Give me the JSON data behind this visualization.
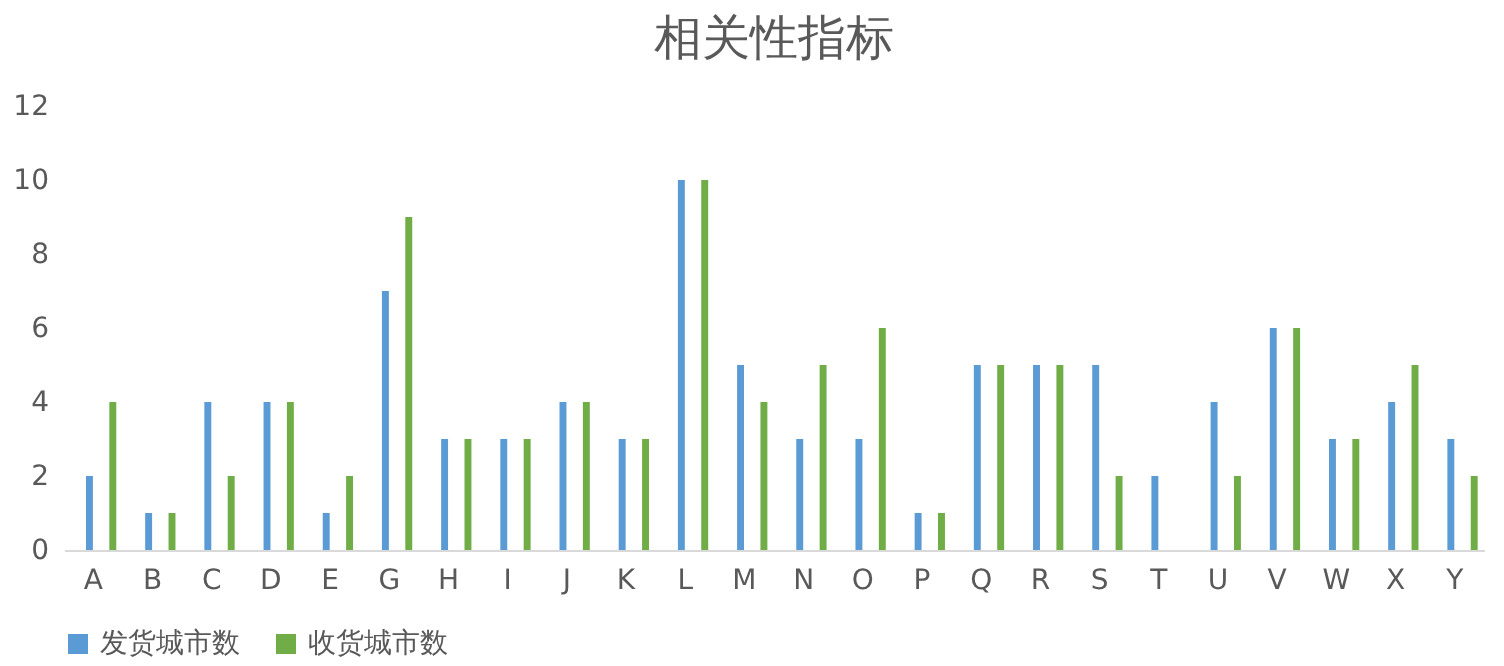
{
  "chart_data": {
    "type": "bar",
    "title": "相关性指标",
    "categories": [
      "A",
      "B",
      "C",
      "D",
      "E",
      "G",
      "H",
      "I",
      "J",
      "K",
      "L",
      "M",
      "N",
      "O",
      "P",
      "Q",
      "R",
      "S",
      "T",
      "U",
      "V",
      "W",
      "X",
      "Y"
    ],
    "series": [
      {
        "name": "发货城市数",
        "color": "#5b9bd5",
        "values": [
          2,
          1,
          4,
          4,
          1,
          7,
          3,
          3,
          4,
          3,
          10,
          5,
          3,
          3,
          1,
          5,
          5,
          5,
          2,
          4,
          6,
          3,
          4,
          3
        ]
      },
      {
        "name": "收货城市数",
        "color": "#70ad47",
        "values": [
          4,
          1,
          2,
          4,
          2,
          9,
          3,
          3,
          4,
          3,
          10,
          4,
          5,
          6,
          1,
          5,
          5,
          2,
          0,
          2,
          6,
          3,
          5,
          2
        ]
      }
    ],
    "ylim": [
      0,
      12
    ],
    "yticks": [
      0,
      2,
      4,
      6,
      8,
      10,
      12
    ],
    "grid": false,
    "legend": "bottom"
  }
}
